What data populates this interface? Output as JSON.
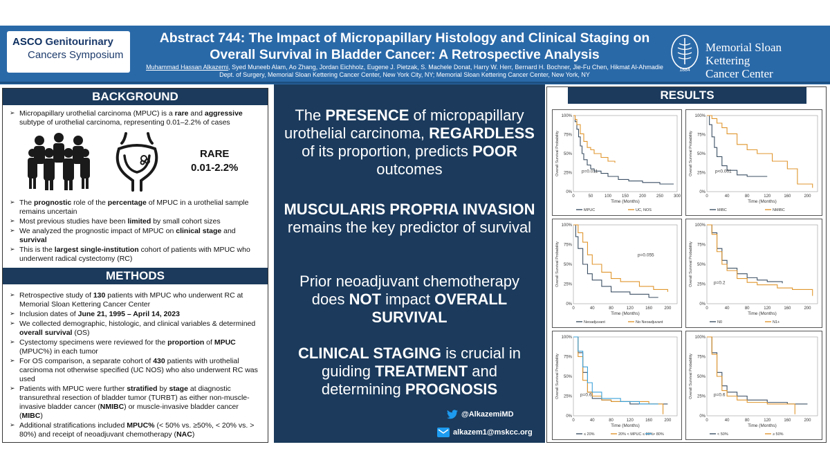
{
  "header": {
    "asco_l1a": "ASCO",
    "asco_l1b": " Genitourinary",
    "asco_l2": "Cancers Symposium",
    "title_l1": "Abstract 744: The Impact of Micropapillary Histology and Clinical Staging on",
    "title_l2": "Overall Survival in Bladder Cancer: A Retrospective Analysis",
    "first_author": "Muhammad Hassan Alkazemi",
    "authors_rest": ", Syed Muneeb Alam, Ao Zhang, Jordan Eichholz, Eugene J. Pietzak, S. Machele Donat, Harry W. Herr, Bernard H. Bochner, Jie-Fu Chen, Hikmat Al-Ahmadie",
    "affiliation": "Dept. of Surgery, Memorial Sloan Kettering Cancer Center, New York City, NY; Memorial Sloan Kettering Cancer Center, New York, NY",
    "mskcc_l1": "Memorial Sloan Kettering",
    "mskcc_l2": "Cancer Center",
    "mskcc_year": "1884"
  },
  "background": {
    "heading": "BACKGROUND",
    "b1_pre": "Micropapillary urothelial carcinoma (MPUC) is a ",
    "b1_bold1": "rare",
    "b1_mid": " and ",
    "b1_bold2": "aggressive",
    "b1_post": " subtype of urothelial carcinoma, representing 0.01–2.2% of cases",
    "rare_l1": "RARE",
    "rare_l2": "0.01-2.2%",
    "b2_pre": "The ",
    "b2_bold1": "prognostic",
    "b2_mid": " role of the ",
    "b2_bold2": "percentage",
    "b2_post": " of MPUC in a urothelial sample remains uncertain",
    "b3_pre": "Most previous studies have been ",
    "b3_bold": "limited",
    "b3_post": " by small cohort sizes",
    "b4_pre": "We analyzed the prognostic impact of MPUC on ",
    "b4_bold1": "clinical stage",
    "b4_mid": " and ",
    "b4_bold2": "survival",
    "b5_pre": "This is the ",
    "b5_bold": "largest single-institution",
    "b5_post": " cohort of patients with MPUC who underwent radical cystectomy (RC)"
  },
  "methods": {
    "heading": "METHODS",
    "m1_pre": "Retrospective study of ",
    "m1_bold": "130",
    "m1_post": " patients with MPUC who underwent RC at Memorial Sloan Kettering Cancer Center",
    "m2_pre": "Inclusion dates of ",
    "m2_bold": "June 21, 1995 – April 14, 2023",
    "m3_pre": "We collected demographic, histologic, and clinical variables & determined ",
    "m3_bold": "overall survival",
    "m3_post": " (OS)",
    "m4_pre": "Cystectomy specimens were reviewed for the ",
    "m4_bold1": "proportion",
    "m4_mid": " of ",
    "m4_bold2": "MPUC",
    "m4_post": " (MPUC%) in each tumor",
    "m5_pre": "For OS comparison, a separate cohort of ",
    "m5_bold": "430",
    "m5_post": " patients with urothelial carcinoma not otherwise specified (UC NOS) who also underwent RC was used",
    "m6_pre": "Patients with MPUC were further ",
    "m6_bold1": "stratified",
    "m6_mid": " by ",
    "m6_bold2": "stage",
    "m6_mid2": " at diagnostic transurethral resection of bladder tumor (TURBT) as either non-muscle-invasive bladder cancer (",
    "m6_bold3": "NMIBC",
    "m6_mid3": ") or muscle-invasive bladder cancer (",
    "m6_bold4": "MIBC",
    "m6_post": ")",
    "m7_pre": "Additional stratifications included ",
    "m7_bold1": "MPUC%",
    "m7_mid": " (< 50% vs. ≥50%, < 20% vs. > 80%) and receipt of neoadjuvant chemotherapy (",
    "m7_bold2": "NAC",
    "m7_post": ")"
  },
  "middle": {
    "p1_a": "The ",
    "p1_b": "PRESENCE",
    "p1_c": " of micropapillary urothelial carcinoma, ",
    "p1_d": "REGARDLESS",
    "p1_e": " of its proportion, predicts ",
    "p1_f": "POOR",
    "p1_g": " outcomes",
    "p2_a": "MUSCULARIS PROPRIA INVASION",
    "p2_b": " remains the key predictor of survival",
    "p3_a": "Prior neoadjuvant chemotherapy does ",
    "p3_b": "NOT",
    "p3_c": " impact ",
    "p3_d": "OVERALL SURVIVAL",
    "p4_a": "CLINICAL STAGING",
    "p4_b": " is crucial in guiding ",
    "p4_c": "TREATMENT",
    "p4_d": " and determining ",
    "p4_e": "PROGNOSIS",
    "twitter": "@AlkazemiMD",
    "email": "alkazem1@mskcc.org"
  },
  "results": {
    "heading": "RESULTS",
    "ylabel": "Overall Survival Probability",
    "xlabel": "Time (Months)"
  },
  "colors": {
    "navy": "#1b3a5c",
    "header_blue": "#2a69a8",
    "km_dark": "#3b4f63",
    "km_orange": "#e0952c",
    "km_blue": "#3aa0d8"
  },
  "chart_data": [
    {
      "type": "line",
      "title": "",
      "xlabel": "Time (Months)",
      "ylabel": "Overall Survival Probability",
      "xticks": [
        "0",
        "50",
        "100",
        "150",
        "200",
        "250",
        "300"
      ],
      "yticks": [
        "0%",
        "25%",
        "50%",
        "75%",
        "100%"
      ],
      "xlim": [
        0,
        300
      ],
      "ylim": [
        0,
        1
      ],
      "annotation": "p=0.011",
      "legend": [
        "MPUC",
        "UC, NOS"
      ],
      "series": [
        {
          "name": "MPUC",
          "color": "#3b4f63",
          "x": [
            0,
            5,
            10,
            15,
            20,
            25,
            30,
            40,
            50,
            60,
            80,
            100,
            130,
            160,
            200,
            250,
            290
          ],
          "y": [
            1,
            0.92,
            0.82,
            0.72,
            0.6,
            0.5,
            0.42,
            0.35,
            0.3,
            0.27,
            0.24,
            0.2,
            0.16,
            0.14,
            0.12,
            0.1,
            0.1
          ]
        },
        {
          "name": "UC, NOS",
          "color": "#e0952c",
          "x": [
            0,
            5,
            10,
            20,
            30,
            40,
            50,
            60,
            80,
            100,
            120
          ],
          "y": [
            1,
            0.95,
            0.88,
            0.76,
            0.66,
            0.58,
            0.55,
            0.5,
            0.45,
            0.4,
            0.38
          ]
        }
      ]
    },
    {
      "type": "line",
      "xlabel": "Time (Months)",
      "ylabel": "Overall Survival Probability",
      "xticks": [
        "0",
        "40",
        "80",
        "120",
        "160",
        "200"
      ],
      "yticks": [
        "0%",
        "25%",
        "50%",
        "75%",
        "100%"
      ],
      "xlim": [
        0,
        220
      ],
      "ylim": [
        0,
        1
      ],
      "annotation": "p<0.001",
      "legend": [
        "MIBC",
        "NMIBC"
      ],
      "series": [
        {
          "name": "MIBC",
          "color": "#3b4f63",
          "x": [
            0,
            5,
            10,
            15,
            20,
            30,
            40,
            60,
            80,
            100,
            120
          ],
          "y": [
            1,
            0.88,
            0.72,
            0.58,
            0.46,
            0.34,
            0.28,
            0.22,
            0.2,
            0.2,
            0.2
          ]
        },
        {
          "name": "NMIBC",
          "color": "#e0952c",
          "x": [
            0,
            10,
            20,
            30,
            40,
            60,
            80,
            100,
            130,
            160,
            180,
            210
          ],
          "y": [
            1,
            0.96,
            0.9,
            0.84,
            0.76,
            0.62,
            0.55,
            0.5,
            0.4,
            0.3,
            0.1,
            0.05
          ]
        }
      ]
    },
    {
      "type": "line",
      "xlabel": "Time (Months)",
      "ylabel": "Overall Survival Probability",
      "xticks": [
        "0",
        "40",
        "80",
        "120",
        "160",
        "200"
      ],
      "yticks": [
        "0%",
        "25%",
        "50%",
        "75%",
        "100%"
      ],
      "xlim": [
        0,
        220
      ],
      "ylim": [
        0,
        1
      ],
      "annotation": "p=0.055",
      "legend": [
        "Neoadjuvant",
        "No Neoadjuvant"
      ],
      "series": [
        {
          "name": "Neoadjuvant",
          "color": "#3b4f63",
          "x": [
            0,
            5,
            10,
            20,
            30,
            40,
            60,
            80,
            120,
            160,
            180
          ],
          "y": [
            1,
            0.85,
            0.7,
            0.5,
            0.38,
            0.3,
            0.22,
            0.15,
            0.12,
            0.08,
            0.08
          ]
        },
        {
          "name": "No Neoadjuvant",
          "color": "#e0952c",
          "x": [
            0,
            10,
            20,
            30,
            40,
            60,
            80,
            100,
            140,
            170,
            200
          ],
          "y": [
            1,
            0.9,
            0.78,
            0.62,
            0.5,
            0.4,
            0.32,
            0.28,
            0.22,
            0.18,
            0.15
          ]
        }
      ]
    },
    {
      "type": "line",
      "xlabel": "Time (Months)",
      "ylabel": "Overall Survival Probability",
      "xticks": [
        "0",
        "40",
        "80",
        "120",
        "160",
        "200"
      ],
      "yticks": [
        "0%",
        "25%",
        "50%",
        "75%",
        "100%"
      ],
      "xlim": [
        0,
        220
      ],
      "ylim": [
        0,
        1
      ],
      "annotation": "p=0.2",
      "legend": [
        "N0",
        "N1+"
      ],
      "series": [
        {
          "name": "N0",
          "color": "#3b4f63",
          "x": [
            0,
            10,
            20,
            30,
            40,
            60,
            80,
            100,
            120,
            150
          ],
          "y": [
            1,
            0.9,
            0.7,
            0.55,
            0.45,
            0.38,
            0.33,
            0.3,
            0.28,
            0.26
          ]
        },
        {
          "name": "N1+",
          "color": "#e0952c",
          "x": [
            0,
            10,
            20,
            30,
            40,
            60,
            80,
            100,
            140,
            170,
            210
          ],
          "y": [
            1,
            0.88,
            0.66,
            0.5,
            0.42,
            0.32,
            0.27,
            0.24,
            0.2,
            0.18,
            0.1
          ]
        }
      ]
    },
    {
      "type": "line",
      "xlabel": "Time (Months)",
      "ylabel": "Overall Survival Probability",
      "xticks": [
        "0",
        "40",
        "80",
        "120",
        "160",
        "200"
      ],
      "yticks": [
        "0%",
        "25%",
        "50%",
        "75%",
        "100%"
      ],
      "xlim": [
        0,
        220
      ],
      "ylim": [
        0,
        1
      ],
      "annotation": "p=0.6",
      "legend": [
        "≤ 20%",
        "20% < MPUC ≤ 80%",
        "> 80%"
      ],
      "series": [
        {
          "name": "≤ 20%",
          "color": "#3b4f63",
          "x": [
            0,
            10,
            20,
            30,
            40,
            60,
            80,
            120,
            160,
            200
          ],
          "y": [
            1,
            0.8,
            0.55,
            0.3,
            0.22,
            0.2,
            0.18,
            0.15,
            0.15,
            0.15
          ]
        },
        {
          "name": "20% < MPUC ≤ 80%",
          "color": "#e0952c",
          "x": [
            0,
            10,
            20,
            30,
            40,
            60,
            80,
            120,
            160,
            190
          ],
          "y": [
            1,
            0.75,
            0.45,
            0.3,
            0.25,
            0.2,
            0.18,
            0.18,
            0.15,
            0.02
          ]
        },
        {
          "name": "> 80%",
          "color": "#3aa0d8",
          "x": [
            0,
            10,
            20,
            30,
            40,
            60,
            100,
            140,
            180
          ],
          "y": [
            1,
            0.82,
            0.62,
            0.42,
            0.3,
            0.22,
            0.18,
            0.15,
            0.15
          ]
        }
      ]
    },
    {
      "type": "line",
      "xlabel": "Time (Months)",
      "ylabel": "Overall Survival Probability",
      "xticks": [
        "0",
        "40",
        "80",
        "120",
        "160",
        "200"
      ],
      "yticks": [
        "0%",
        "25%",
        "50%",
        "75%",
        "100%"
      ],
      "xlim": [
        0,
        220
      ],
      "ylim": [
        0,
        1
      ],
      "annotation": "p=0.6",
      "legend": [
        "< 50%",
        "≥ 50%"
      ],
      "series": [
        {
          "name": "< 50%",
          "color": "#3b4f63",
          "x": [
            0,
            10,
            20,
            30,
            40,
            60,
            80,
            120,
            160,
            200
          ],
          "y": [
            1,
            0.8,
            0.55,
            0.38,
            0.3,
            0.25,
            0.2,
            0.17,
            0.15,
            0.15
          ]
        },
        {
          "name": "≥ 50%",
          "color": "#e0952c",
          "x": [
            0,
            10,
            20,
            30,
            40,
            60,
            80,
            120,
            150,
            175
          ],
          "y": [
            1,
            0.78,
            0.5,
            0.32,
            0.25,
            0.2,
            0.17,
            0.15,
            0.15,
            0.02
          ]
        }
      ]
    }
  ]
}
